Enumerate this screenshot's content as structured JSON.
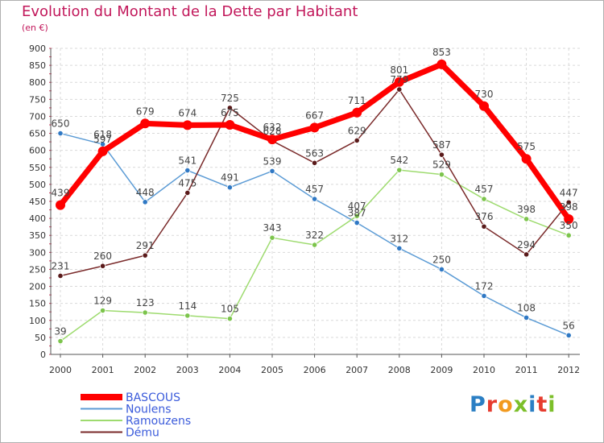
{
  "title": "Evolution du Montant de la Dette par Habitant",
  "subtitle": "(en €)",
  "logo": {
    "text": "Proxiti",
    "letters": [
      {
        "ch": "P",
        "color": "#2b7fc4"
      },
      {
        "ch": "r",
        "color": "#e63c2f"
      },
      {
        "ch": "o",
        "color": "#f29a1f"
      },
      {
        "ch": "x",
        "color": "#7cbf2a"
      },
      {
        "ch": "i",
        "color": "#2b7fc4"
      },
      {
        "ch": "t",
        "color": "#e63c2f"
      },
      {
        "ch": "i",
        "color": "#7cbf2a"
      }
    ]
  },
  "chart_data": {
    "type": "line",
    "x": [
      "2000",
      "2001",
      "2002",
      "2003",
      "2004",
      "2005",
      "2006",
      "2007",
      "2008",
      "2009",
      "2010",
      "2011",
      "2012"
    ],
    "ylim": [
      0,
      900
    ],
    "yticks": [
      0,
      50,
      100,
      150,
      200,
      250,
      300,
      350,
      400,
      450,
      500,
      550,
      600,
      650,
      700,
      750,
      800,
      850,
      900
    ],
    "grid": true,
    "legend_position": "bottom-left",
    "series": [
      {
        "name": "Noulens",
        "color": "#5b9bd5",
        "point_color": "#2f78c4",
        "values": [
          650,
          618,
          448,
          541,
          491,
          539,
          457,
          387,
          312,
          250,
          172,
          108,
          56
        ]
      },
      {
        "name": "Ramouzens",
        "color": "#9edb6f",
        "point_color": "#7cc44c",
        "values": [
          39,
          129,
          123,
          114,
          105,
          343,
          322,
          407,
          542,
          529,
          457,
          398,
          350
        ]
      },
      {
        "name": "Dému",
        "color": "#7a2a2a",
        "point_color": "#5a1a1a",
        "values": [
          231,
          260,
          291,
          475,
          725,
          628,
          563,
          629,
          779,
          587,
          376,
          294,
          447
        ]
      },
      {
        "name": "BASCOUS",
        "color": "#ff0000",
        "point_color": "#ff0000",
        "values": [
          439,
          597,
          679,
          674,
          675,
          632,
          667,
          711,
          801,
          853,
          730,
          575,
          398
        ]
      }
    ],
    "legend_order": [
      "BASCOUS",
      "Noulens",
      "Ramouzens",
      "Dému"
    ]
  }
}
